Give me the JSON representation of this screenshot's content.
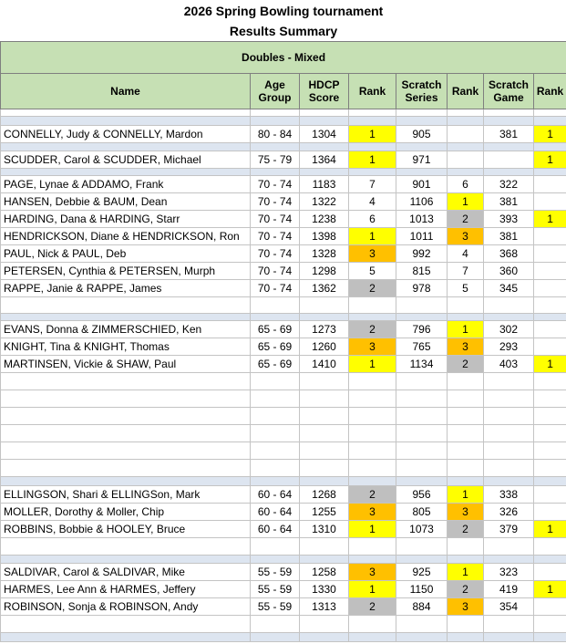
{
  "header": {
    "title": "2026 Spring Bowling tournament",
    "subtitle": "Results Summary",
    "section": "Doubles - Mixed"
  },
  "columns": [
    "Name",
    "Age Group",
    "HDCP Score",
    "Rank",
    "Scratch Series",
    "Rank",
    "Scratch Game",
    "Rank"
  ],
  "rows": [
    {
      "cells": [
        "CONNELLY, Judy & CONNELLY, Mardon",
        "80 - 84",
        "1304",
        "1",
        "905",
        null,
        "381",
        "1"
      ],
      "fills": [
        null,
        null,
        null,
        "#ffff00",
        null,
        null,
        null,
        "#ffff00"
      ]
    },
    {
      "cells": [
        "SCUDDER, Carol & SCUDDER, Michael",
        "75 - 79",
        "1364",
        "1",
        "971",
        null,
        null,
        "1"
      ],
      "fills": [
        null,
        null,
        null,
        "#ffff00",
        null,
        null,
        null,
        "#ffff00"
      ]
    },
    {
      "cells": [
        "PAGE, Lynae & ADDAMO, Frank",
        "70 - 74",
        "1183",
        "7",
        "901",
        "6",
        "322",
        null
      ],
      "fills": [
        null,
        null,
        null,
        null,
        null,
        null,
        null,
        null
      ]
    },
    {
      "cells": [
        "HANSEN, Debbie & BAUM, Dean",
        "70 - 74",
        "1322",
        "4",
        "1106",
        "1",
        "381",
        null
      ],
      "fills": [
        null,
        null,
        null,
        null,
        null,
        "#ffff00",
        null,
        null
      ]
    },
    {
      "cells": [
        "HARDING, Dana & HARDING, Starr",
        "70 - 74",
        "1238",
        "6",
        "1013",
        "2",
        "393",
        "1"
      ],
      "fills": [
        null,
        null,
        null,
        null,
        null,
        "#bfbfbf",
        null,
        "#ffff00"
      ]
    },
    {
      "cells": [
        "HENDRICKSON, Diane & HENDRICKSON, Ron",
        "70 - 74",
        "1398",
        "1",
        "1011",
        "3",
        "381",
        null
      ],
      "fills": [
        null,
        null,
        null,
        "#ffff00",
        null,
        "#ffc000",
        null,
        null
      ]
    },
    {
      "cells": [
        "PAUL, Nick & PAUL, Deb",
        "70 - 74",
        "1328",
        "3",
        "992",
        "4",
        "368",
        null
      ],
      "fills": [
        null,
        null,
        null,
        "#ffc000",
        null,
        null,
        null,
        null
      ]
    },
    {
      "cells": [
        "PETERSEN, Cynthia & PETERSEN, Murph",
        "70 - 74",
        "1298",
        "5",
        "815",
        "7",
        "360",
        null
      ],
      "fills": [
        null,
        null,
        null,
        null,
        null,
        null,
        null,
        null
      ]
    },
    {
      "cells": [
        "RAPPE, Janie & RAPPE, James",
        "70 - 74",
        "1362",
        "2",
        "978",
        "5",
        "345",
        null
      ],
      "fills": [
        null,
        null,
        null,
        "#bfbfbf",
        null,
        null,
        null,
        null
      ]
    },
    {
      "cells": [
        "EVANS, Donna & ZIMMERSCHIED, Ken",
        "65 - 69",
        "1273",
        "2",
        "796",
        "1",
        "302",
        null
      ],
      "fills": [
        null,
        null,
        null,
        "#bfbfbf",
        null,
        "#ffff00",
        null,
        null
      ]
    },
    {
      "cells": [
        "KNIGHT, Tina & KNIGHT, Thomas",
        "65 - 69",
        "1260",
        "3",
        "765",
        "3",
        "293",
        null
      ],
      "fills": [
        null,
        null,
        null,
        "#ffc000",
        null,
        "#ffc000",
        null,
        null
      ]
    },
    {
      "cells": [
        "MARTINSEN, Vickie & SHAW, Paul",
        "65 - 69",
        "1410",
        "1",
        "1134",
        "2",
        "403",
        "1"
      ],
      "fills": [
        null,
        null,
        null,
        "#ffff00",
        null,
        "#bfbfbf",
        null,
        "#ffff00"
      ]
    },
    {
      "cells": [
        "ELLINGSON, Shari & ELLINGSon, Mark",
        "60 - 64",
        "1268",
        "2",
        "956",
        "1",
        "338",
        null
      ],
      "fills": [
        null,
        null,
        null,
        "#bfbfbf",
        null,
        "#ffff00",
        null,
        null
      ]
    },
    {
      "cells": [
        "MOLLER, Dorothy & Moller, Chip",
        "60 - 64",
        "1255",
        "3",
        "805",
        "3",
        "326",
        null
      ],
      "fills": [
        null,
        null,
        null,
        "#ffc000",
        null,
        "#ffc000",
        null,
        null
      ]
    },
    {
      "cells": [
        "ROBBINS, Bobbie & HOOLEY, Bruce",
        "60 - 64",
        "1310",
        "1",
        "1073",
        "2",
        "379",
        "1"
      ],
      "fills": [
        null,
        null,
        null,
        "#ffff00",
        null,
        "#bfbfbf",
        null,
        "#ffff00"
      ]
    },
    {
      "cells": [
        "SALDIVAR, Carol & SALDIVAR, Mike",
        "55 - 59",
        "1258",
        "3",
        "925",
        "1",
        "323",
        null
      ],
      "fills": [
        null,
        null,
        null,
        "#ffc000",
        null,
        "#ffff00",
        null,
        null
      ]
    },
    {
      "cells": [
        "HARMES, Lee Ann & HARMES, Jeffery",
        "55 - 59",
        "1330",
        "1",
        "1150",
        "2",
        "419",
        "1"
      ],
      "fills": [
        null,
        null,
        null,
        "#ffff00",
        null,
        "#bfbfbf",
        null,
        "#ffff00"
      ]
    },
    {
      "cells": [
        "ROBINSON, Sonja & ROBINSON, Andy",
        "55 - 59",
        "1313",
        "2",
        "884",
        "3",
        "354",
        null
      ],
      "fills": [
        null,
        null,
        null,
        "#bfbfbf",
        null,
        "#ffc000",
        null,
        null
      ]
    }
  ]
}
